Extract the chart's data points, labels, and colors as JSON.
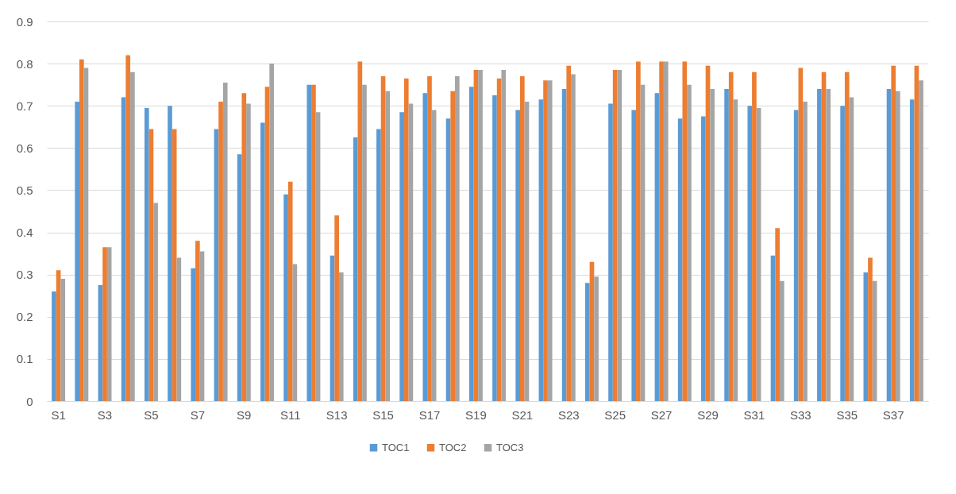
{
  "chart_data": {
    "type": "bar",
    "categories": [
      "S1",
      null,
      "S3",
      null,
      "S5",
      null,
      "S7",
      null,
      "S9",
      null,
      "S11",
      null,
      "S13",
      null,
      "S15",
      null,
      "S17",
      null,
      "S19",
      null,
      "S21",
      null,
      "S23",
      null,
      "S25",
      null,
      "S27",
      null,
      "S29",
      null,
      "S31",
      null,
      "S33",
      null,
      "S35",
      null,
      "S37",
      null
    ],
    "series": [
      {
        "name": "TOC1",
        "color": "#5b9bd5",
        "values": [
          0.26,
          0.71,
          0.275,
          0.72,
          0.695,
          0.7,
          0.315,
          0.645,
          0.585,
          0.66,
          0.49,
          0.75,
          0.345,
          0.625,
          0.645,
          0.685,
          0.73,
          0.67,
          0.745,
          0.725,
          0.69,
          0.715,
          0.74,
          0.28,
          0.705,
          0.69,
          0.73,
          0.67,
          0.675,
          0.74,
          0.7,
          0.345,
          0.69,
          0.74,
          0.7,
          0.305,
          0.74,
          0.715
        ]
      },
      {
        "name": "TOC2",
        "color": "#ed7d31",
        "values": [
          0.31,
          0.81,
          0.365,
          0.82,
          0.645,
          0.645,
          0.38,
          0.71,
          0.73,
          0.745,
          0.52,
          0.75,
          0.44,
          0.805,
          0.77,
          0.765,
          0.77,
          0.735,
          0.785,
          0.765,
          0.77,
          0.76,
          0.795,
          0.33,
          0.785,
          0.805,
          0.805,
          0.805,
          0.795,
          0.78,
          0.78,
          0.41,
          0.79,
          0.78,
          0.78,
          0.34,
          0.795,
          0.795
        ]
      },
      {
        "name": "TOC3",
        "color": "#a5a5a5",
        "values": [
          0.29,
          0.79,
          0.365,
          0.78,
          0.47,
          0.34,
          0.355,
          0.755,
          0.705,
          0.8,
          0.325,
          0.685,
          0.305,
          0.75,
          0.735,
          0.705,
          0.69,
          0.77,
          0.785,
          0.785,
          0.71,
          0.76,
          0.775,
          0.295,
          0.785,
          0.75,
          0.805,
          0.75,
          0.74,
          0.715,
          0.695,
          0.285,
          0.71,
          0.74,
          0.72,
          0.285,
          0.735,
          0.76
        ]
      }
    ],
    "ylim": [
      0,
      0.9
    ],
    "yticks": [
      0,
      0.1,
      0.2,
      0.3,
      0.4,
      0.5,
      0.6,
      0.7,
      0.8,
      0.9
    ],
    "grid": "y",
    "legend": "bottom"
  }
}
